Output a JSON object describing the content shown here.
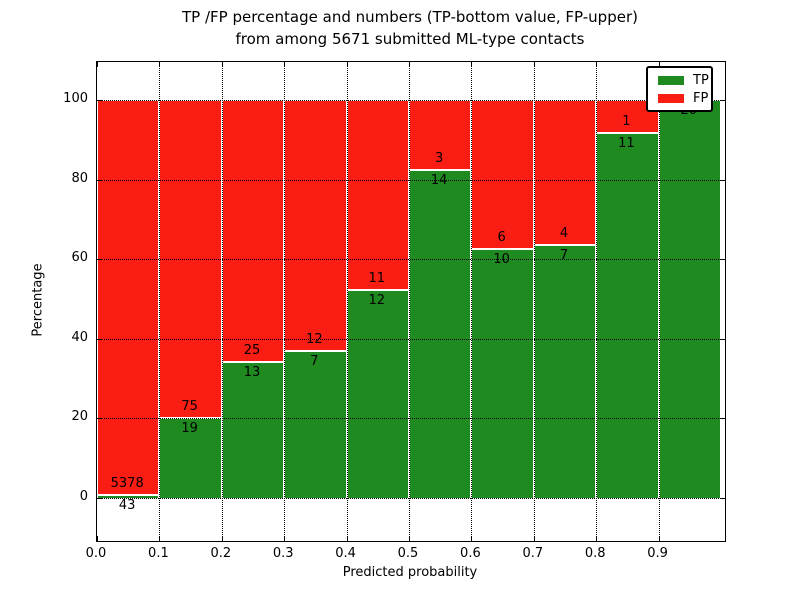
{
  "title": {
    "line1": "TP /FP percentage and numbers (TP-bottom value, FP-upper)",
    "line2": "from among 5671 submitted ML-type contacts"
  },
  "axes": {
    "xlabel": "Predicted probability",
    "ylabel": "Percentage",
    "xtick_labels": [
      "0.0",
      "0.1",
      "0.2",
      "0.3",
      "0.4",
      "0.5",
      "0.6",
      "0.7",
      "0.8",
      "0.9"
    ],
    "ytick_labels": [
      "0",
      "20",
      "40",
      "60",
      "80",
      "100"
    ],
    "ytick_values": [
      0,
      20,
      40,
      60,
      80,
      100
    ]
  },
  "legend": {
    "entries": [
      {
        "label": "TP",
        "color": "#1f8a1f"
      },
      {
        "label": "FP",
        "color": "#fa1d13"
      }
    ]
  },
  "chart_data": {
    "type": "bar",
    "stacked": true,
    "normalized_to_percent": true,
    "title": "TP /FP percentage and numbers (TP-bottom value, FP-upper) from among 5671 submitted ML-type contacts",
    "xlabel": "Predicted probability",
    "ylabel": "Percentage",
    "total_contacts": 5671,
    "x_bins": [
      "0.0-0.1",
      "0.1-0.2",
      "0.2-0.3",
      "0.3-0.4",
      "0.4-0.5",
      "0.5-0.6",
      "0.6-0.7",
      "0.7-0.8",
      "0.8-0.9",
      "0.9-1.0"
    ],
    "series": [
      {
        "name": "TP",
        "color": "#1f8a1f",
        "counts": [
          43,
          19,
          13,
          7,
          12,
          14,
          10,
          7,
          11,
          20
        ]
      },
      {
        "name": "FP",
        "color": "#fa1d13",
        "counts": [
          5378,
          75,
          25,
          12,
          11,
          3,
          6,
          4,
          1,
          0
        ]
      }
    ],
    "tp_percent": [
      0.79,
      20.21,
      34.21,
      36.84,
      52.17,
      82.35,
      62.5,
      63.64,
      91.67,
      100.0
    ],
    "bar_value_labels": {
      "fp": [
        "5378",
        "75",
        "25",
        "12",
        "11",
        "3",
        "6",
        "4",
        "1",
        ""
      ],
      "tp": [
        "43",
        "19",
        "13",
        "7",
        "12",
        "14",
        "10",
        "7",
        "11",
        "20"
      ]
    },
    "xlim": [
      0.0,
      1.006
    ],
    "ylim": [
      -10.8,
      109.5
    ],
    "grid": "dotted black, horizontal lines drawn above bars",
    "legend_position": "upper right",
    "bar_edge_color": "#ffffff"
  }
}
